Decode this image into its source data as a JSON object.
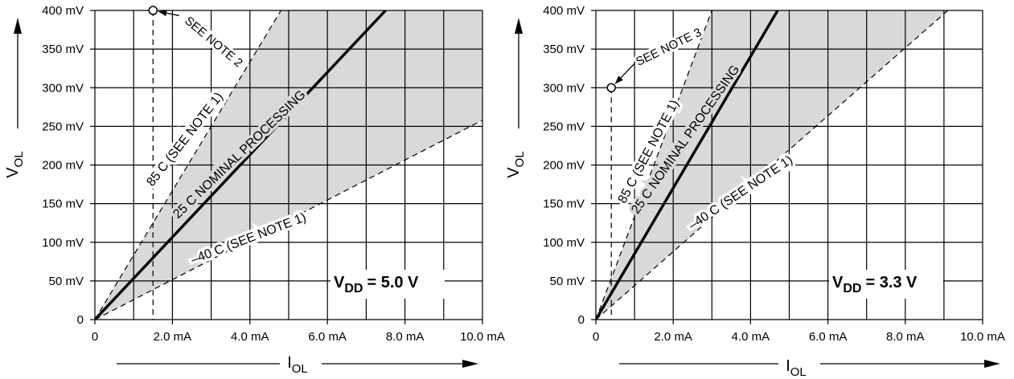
{
  "chart_data": [
    {
      "type": "line",
      "xlabel": "I",
      "xlabel_sub": "OL",
      "ylabel": "V",
      "ylabel_sub": "OL",
      "xlim": [
        0,
        10
      ],
      "ylim": [
        0,
        400
      ],
      "grid": true,
      "x_ticks": [
        "0",
        "2.0 mA",
        "4.0 mA",
        "6.0 mA",
        "8.0 mA",
        "10.0 mA"
      ],
      "y_ticks": [
        "0",
        "50 mV",
        "100 mV",
        "150 mV",
        "200 mV",
        "250 mV",
        "300 mV",
        "350 mV",
        "400 mV"
      ],
      "shaded_region": "between 85 C and -40 C limits",
      "series": [
        {
          "name": "25 C NOMINAL PROCESSING",
          "style": "solid",
          "x": [
            0,
            7.5
          ],
          "y": [
            0,
            400
          ]
        },
        {
          "name": "85 C (SEE NOTE 1)",
          "style": "dashed",
          "x": [
            0,
            4.8
          ],
          "y": [
            0,
            400
          ]
        },
        {
          "name": "-40 C (SEE NOTE 1)",
          "style": "dashed",
          "x": [
            0,
            10.0
          ],
          "y": [
            0,
            258
          ]
        }
      ],
      "series_labels": [
        {
          "text": "85   C (SEE NOTE 1)",
          "at_x": 2.4,
          "at_y": 230,
          "angle": -52
        },
        {
          "text": "25  C NOMINAL PROCESSING",
          "at_x": 3.8,
          "at_y": 210,
          "angle": -44
        },
        {
          "text": "–40   C (SEE NOTE 1)",
          "at_x": 4.0,
          "at_y": 100,
          "angle": -21
        }
      ],
      "reference_line_x": 1.5,
      "marker": {
        "x": 1.5,
        "y": 400
      },
      "note": {
        "text": "SEE NOTE 2",
        "at_x": 2.3,
        "at_y": 385,
        "angle": 40
      },
      "supply": {
        "main": "V",
        "sub": "DD",
        "value": "= 5.0 V"
      }
    },
    {
      "type": "line",
      "xlabel": "I",
      "xlabel_sub": "OL",
      "ylabel": "V",
      "ylabel_sub": "OL",
      "xlim": [
        0,
        10
      ],
      "ylim": [
        0,
        400
      ],
      "grid": true,
      "x_ticks": [
        "0",
        "2.0 mA",
        "4.0 mA",
        "6.0 mA",
        "8.0 mA",
        "10.0 mA"
      ],
      "y_ticks": [
        "0",
        "50 mV",
        "100 mV",
        "150 mV",
        "200 mV",
        "250 mV",
        "300 mV",
        "350 mV",
        "400 mV"
      ],
      "shaded_region": "between 85 C and -40 C limits",
      "series": [
        {
          "name": "25 C NOMINAL PROCESSING",
          "style": "solid",
          "x": [
            0,
            4.7
          ],
          "y": [
            0,
            400
          ]
        },
        {
          "name": "85 C (SEE NOTE 1)",
          "style": "dashed",
          "x": [
            0,
            3.0
          ],
          "y": [
            0,
            400
          ]
        },
        {
          "name": "-40 C (SEE NOTE 1)",
          "style": "dashed",
          "x": [
            0,
            9.1
          ],
          "y": [
            0,
            400
          ]
        }
      ],
      "series_labels": [
        {
          "text": "85   C (SEE NOTE 1)",
          "at_x": 1.45,
          "at_y": 215,
          "angle": -62
        },
        {
          "text": "25  C NOMINAL PROCESSING",
          "at_x": 2.4,
          "at_y": 230,
          "angle": -55
        },
        {
          "text": "–40   C (SEE NOTE 1)",
          "at_x": 3.8,
          "at_y": 160,
          "angle": -34
        }
      ],
      "reference_line_x": 0.4,
      "marker": {
        "x": 0.4,
        "y": 300
      },
      "note": {
        "text": "SEE NOTE 3",
        "at_x": 1.1,
        "at_y": 328,
        "angle": -26
      },
      "supply": {
        "main": "V",
        "sub": "DD",
        "value": "= 3.3 V"
      }
    }
  ]
}
